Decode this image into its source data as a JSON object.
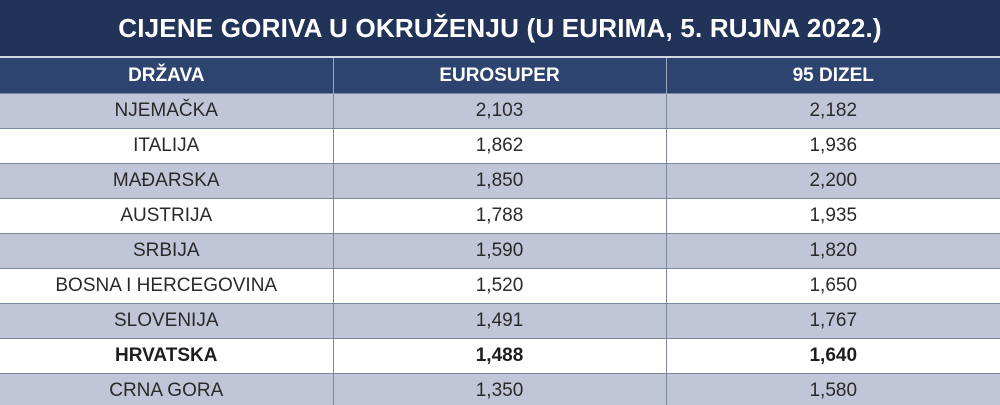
{
  "chart_data": {
    "type": "table",
    "title": "CIJENE GORIVA U OKRUŽENJU (U EURIMA, 5. RUJNA 2022.)",
    "columns": [
      "DRŽAVA",
      "EUROSUPER",
      "95 DIZEL"
    ],
    "rows": [
      {
        "country": "NJEMAČKA",
        "eurosuper": "2,103",
        "dizel": "2,182",
        "bold": false
      },
      {
        "country": "ITALIJA",
        "eurosuper": "1,862",
        "dizel": "1,936",
        "bold": false
      },
      {
        "country": "MAĐARSKA",
        "eurosuper": "1,850",
        "dizel": "2,200",
        "bold": false
      },
      {
        "country": "AUSTRIJA",
        "eurosuper": "1,788",
        "dizel": "1,935",
        "bold": false
      },
      {
        "country": "SRBIJA",
        "eurosuper": "1,590",
        "dizel": "1,820",
        "bold": false
      },
      {
        "country": "BOSNA I HERCEGOVINA",
        "eurosuper": "1,520",
        "dizel": "1,650",
        "bold": false
      },
      {
        "country": "SLOVENIJA",
        "eurosuper": "1,491",
        "dizel": "1,767",
        "bold": false
      },
      {
        "country": "HRVATSKA",
        "eurosuper": "1,488",
        "dizel": "1,640",
        "bold": true
      },
      {
        "country": "CRNA GORA",
        "eurosuper": "1,350",
        "dizel": "1,580",
        "bold": false
      }
    ]
  },
  "colors": {
    "title_bg": "#213358",
    "header_bg": "#2d4370",
    "row_shaded": "#c0c5d8",
    "row_plain": "#ffffff"
  }
}
